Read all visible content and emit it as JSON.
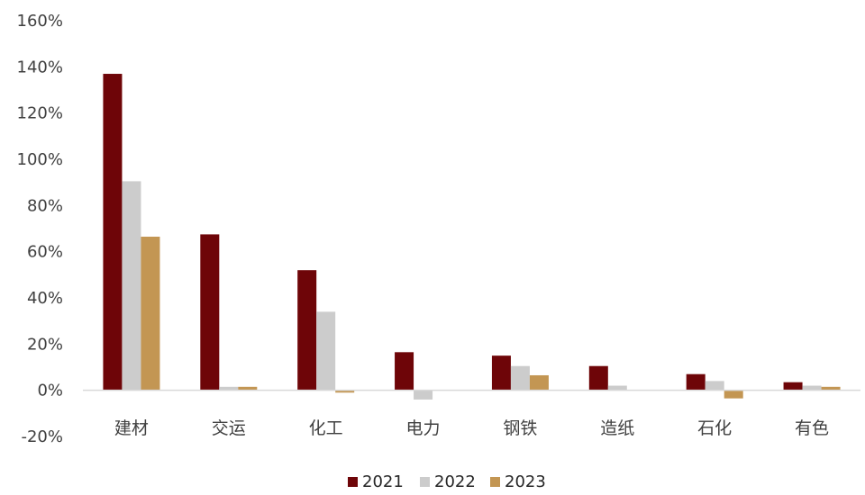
{
  "chart_data": {
    "type": "bar",
    "categories": [
      "建材",
      "交运",
      "化工",
      "电力",
      "钢铁",
      "造纸",
      "石化",
      "有色"
    ],
    "series": [
      {
        "name": "2021",
        "color": "#6e0508",
        "values": [
          137,
          67.5,
          52,
          16.5,
          15,
          10.5,
          7,
          3.5
        ]
      },
      {
        "name": "2022",
        "color": "#cccccc",
        "values": [
          90.5,
          1.5,
          34,
          -4,
          10.5,
          2,
          4,
          2
        ]
      },
      {
        "name": "2023",
        "color": "#c39653",
        "values": [
          66.5,
          1.5,
          -1,
          0,
          6.5,
          0,
          -3.5,
          1.5
        ]
      }
    ],
    "y_ticks": [
      "-20%",
      "0%",
      "20%",
      "40%",
      "60%",
      "80%",
      "100%",
      "120%",
      "140%",
      "160%"
    ],
    "ylim": [
      -20,
      160
    ],
    "legend_position": "bottom-center",
    "grid": false
  }
}
